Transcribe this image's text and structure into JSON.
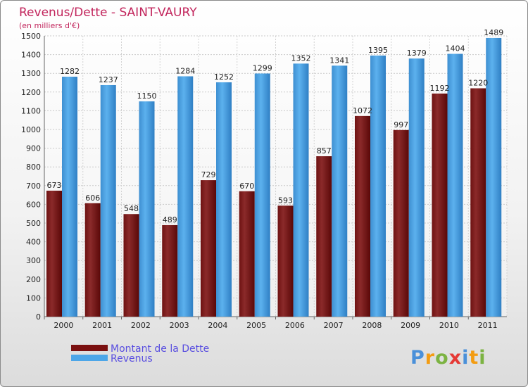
{
  "chart_data": {
    "type": "bar",
    "title": "Revenus/Dette - SAINT-VAURY",
    "subtitle": "(en milliers d'€)",
    "categories": [
      "2000",
      "2001",
      "2002",
      "2003",
      "2004",
      "2005",
      "2006",
      "2007",
      "2008",
      "2009",
      "2010",
      "2011"
    ],
    "series": [
      {
        "name": "Montant de la Dette",
        "color": "#7a1010",
        "values": [
          673,
          606,
          548,
          489,
          729,
          670,
          593,
          857,
          1072,
          997,
          1192,
          1220
        ]
      },
      {
        "name": "Revenus",
        "color": "#4da6e8",
        "values": [
          1282,
          1237,
          1150,
          1284,
          1252,
          1299,
          1352,
          1341,
          1395,
          1379,
          1404,
          1489
        ]
      }
    ],
    "ylim": [
      0,
      1500
    ],
    "ytick_step": 100,
    "grid": true,
    "legend_position": "bottom-left"
  },
  "branding": {
    "logo_text": "Proxiti",
    "logo_colors": [
      "#4a90d9",
      "#f39c12",
      "#7cb342",
      "#e53935",
      "#4a90d9",
      "#f39c12",
      "#7cb342"
    ]
  }
}
